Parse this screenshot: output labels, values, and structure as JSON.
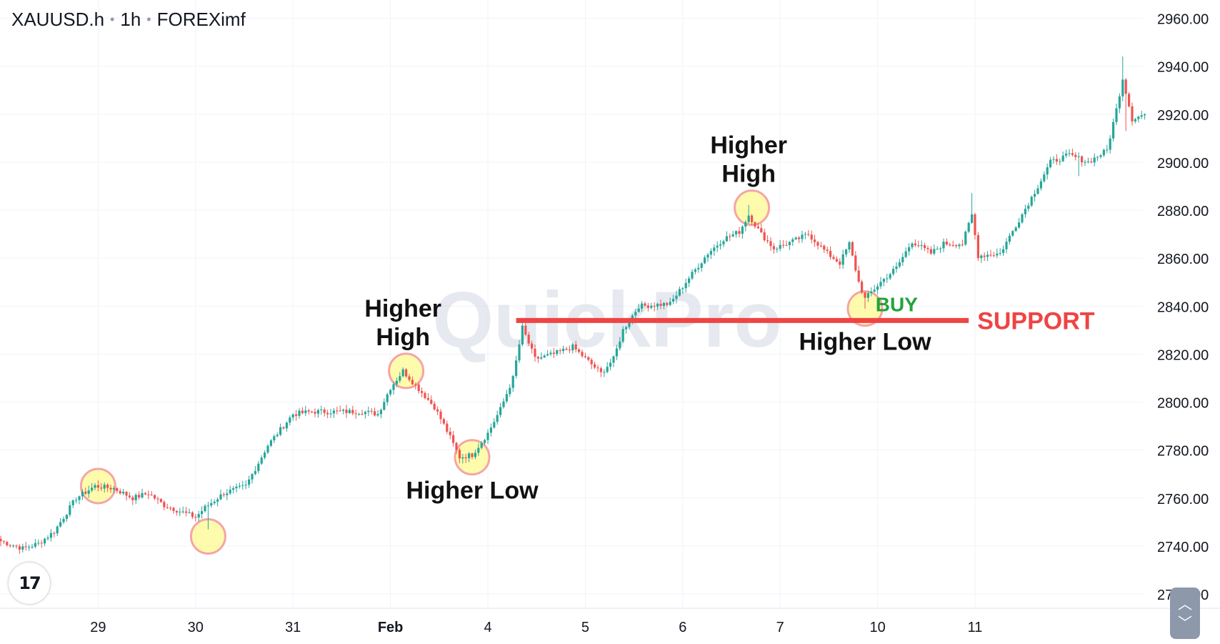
{
  "header": {
    "symbol": "XAUUSD.h",
    "interval": "1h",
    "broker": "FOREXimf"
  },
  "watermark": "QuickPro",
  "chart_data": {
    "type": "candlestick",
    "title": "",
    "ylim": [
      2712,
      2968
    ],
    "y_ticks": [
      "2960.00",
      "2940.00",
      "2920.00",
      "2900.00",
      "2880.00",
      "2860.00",
      "2840.00",
      "2820.00",
      "2800.00",
      "2780.00",
      "2760.00",
      "2740.00",
      "2720.00"
    ],
    "x_ticks": [
      "29",
      "30",
      "31",
      "Feb",
      "4",
      "5",
      "6",
      "7",
      "10",
      "11"
    ],
    "grid": true,
    "colors": {
      "up": "#26a69a",
      "down": "#ef5350",
      "support": "#ef4444",
      "buy": "#22a33a"
    },
    "path": [
      {
        "i": 0,
        "p": 2742
      },
      {
        "i": 7,
        "p": 2739
      },
      {
        "i": 12,
        "p": 2741
      },
      {
        "i": 17,
        "p": 2746
      },
      {
        "i": 24,
        "p": 2760
      },
      {
        "i": 30,
        "p": 2765
      },
      {
        "i": 36,
        "p": 2764
      },
      {
        "i": 42,
        "p": 2760
      },
      {
        "i": 47,
        "p": 2762
      },
      {
        "i": 52,
        "p": 2757
      },
      {
        "i": 56,
        "p": 2755
      },
      {
        "i": 62,
        "p": 2752
      },
      {
        "i": 65,
        "p": 2756
      },
      {
        "i": 71,
        "p": 2762
      },
      {
        "i": 78,
        "p": 2765
      },
      {
        "i": 85,
        "p": 2782
      },
      {
        "i": 93,
        "p": 2795
      },
      {
        "i": 99,
        "p": 2796
      },
      {
        "i": 106,
        "p": 2796
      },
      {
        "i": 115,
        "p": 2796
      },
      {
        "i": 120,
        "p": 2795
      },
      {
        "i": 124,
        "p": 2806
      },
      {
        "i": 128,
        "p": 2813
      },
      {
        "i": 134,
        "p": 2804
      },
      {
        "i": 138,
        "p": 2798
      },
      {
        "i": 142,
        "p": 2788
      },
      {
        "i": 146,
        "p": 2777
      },
      {
        "i": 150,
        "p": 2778
      },
      {
        "i": 155,
        "p": 2787
      },
      {
        "i": 159,
        "p": 2797
      },
      {
        "i": 163,
        "p": 2810
      },
      {
        "i": 166,
        "p": 2831
      },
      {
        "i": 170,
        "p": 2818
      },
      {
        "i": 176,
        "p": 2820
      },
      {
        "i": 182,
        "p": 2823
      },
      {
        "i": 187,
        "p": 2817
      },
      {
        "i": 191,
        "p": 2812
      },
      {
        "i": 195,
        "p": 2818
      },
      {
        "i": 198,
        "p": 2830
      },
      {
        "i": 203,
        "p": 2840
      },
      {
        "i": 213,
        "p": 2841
      },
      {
        "i": 218,
        "p": 2850
      },
      {
        "i": 225,
        "p": 2862
      },
      {
        "i": 230,
        "p": 2868
      },
      {
        "i": 235,
        "p": 2871
      },
      {
        "i": 238,
        "p": 2878
      },
      {
        "i": 242,
        "p": 2870
      },
      {
        "i": 246,
        "p": 2864
      },
      {
        "i": 252,
        "p": 2867
      },
      {
        "i": 257,
        "p": 2870
      },
      {
        "i": 263,
        "p": 2862
      },
      {
        "i": 267,
        "p": 2858
      },
      {
        "i": 270,
        "p": 2866
      },
      {
        "i": 273,
        "p": 2850
      },
      {
        "i": 275,
        "p": 2843
      },
      {
        "i": 280,
        "p": 2850
      },
      {
        "i": 285,
        "p": 2856
      },
      {
        "i": 290,
        "p": 2867
      },
      {
        "i": 296,
        "p": 2862
      },
      {
        "i": 300,
        "p": 2866
      },
      {
        "i": 306,
        "p": 2866
      },
      {
        "i": 309,
        "p": 2878
      },
      {
        "i": 311,
        "p": 2861
      },
      {
        "i": 318,
        "p": 2862
      },
      {
        "i": 324,
        "p": 2876
      },
      {
        "i": 330,
        "p": 2890
      },
      {
        "i": 334,
        "p": 2900
      },
      {
        "i": 340,
        "p": 2903
      },
      {
        "i": 346,
        "p": 2900
      },
      {
        "i": 352,
        "p": 2905
      },
      {
        "i": 355,
        "p": 2922
      },
      {
        "i": 357,
        "p": 2935
      },
      {
        "i": 360,
        "p": 2918
      },
      {
        "i": 364,
        "p": 2920
      }
    ],
    "annotations": [
      {
        "text": "Higher High",
        "lines": [
          "Higher",
          "High"
        ],
        "at_i": 128,
        "at_p": 2813
      },
      {
        "text": "Higher Low",
        "lines": [
          "Higher Low"
        ],
        "at_i": 150,
        "at_p": 2777
      },
      {
        "text": "Higher High",
        "lines": [
          "Higher",
          "High"
        ],
        "at_i": 238,
        "at_p": 2881
      },
      {
        "text": "Higher Low",
        "lines": [
          "Higher Low"
        ],
        "at_i": 275,
        "at_p": 2839
      }
    ],
    "highlight_points": [
      {
        "i": 31,
        "p": 2765
      },
      {
        "i": 66,
        "p": 2744
      },
      {
        "i": 129,
        "p": 2813
      },
      {
        "i": 150,
        "p": 2777
      },
      {
        "i": 239,
        "p": 2881
      },
      {
        "i": 275,
        "p": 2839
      }
    ],
    "support": {
      "label": "SUPPORT",
      "price": 2834,
      "from_i": 164,
      "to_i": 308
    },
    "signal": {
      "label": "BUY",
      "at_i": 277,
      "at_p": 2839
    }
  }
}
